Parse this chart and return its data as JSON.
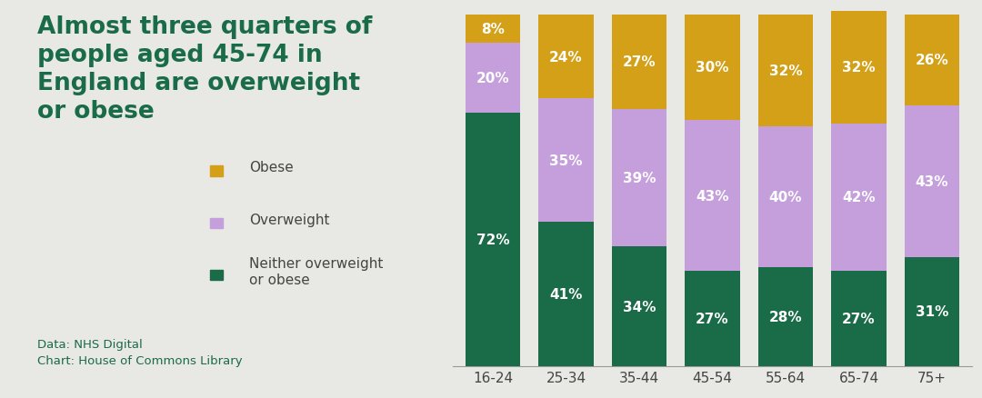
{
  "categories": [
    "16-24",
    "25-34",
    "35-44",
    "45-54",
    "55-64",
    "65-74",
    "75+"
  ],
  "neither": [
    72,
    41,
    34,
    27,
    28,
    27,
    31
  ],
  "overweight": [
    20,
    35,
    39,
    43,
    40,
    42,
    43
  ],
  "obese": [
    8,
    24,
    27,
    30,
    32,
    32,
    26
  ],
  "color_neither": "#1a6b47",
  "color_overweight": "#c49fdc",
  "color_obese": "#d4a017",
  "bg_color": "#e8e8e4",
  "title_color": "#1a6b47",
  "title_text": "Almost three quarters of\npeople aged 45-74 in\nEngland are overweight\nor obese",
  "source_text": "Data: NHS Digital\nChart: House of Commons Library",
  "legend_labels": [
    "Obese",
    "Overweight",
    "Neither overweight\nor obese"
  ],
  "title_fontsize": 19,
  "label_fontsize": 11,
  "source_fontsize": 9.5,
  "legend_fontsize": 11,
  "tick_fontsize": 11
}
